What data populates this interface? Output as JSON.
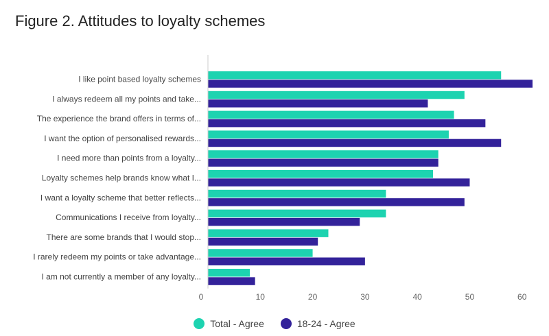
{
  "chart_data": {
    "type": "bar",
    "orientation": "horizontal",
    "title": "Figure 2. Attitudes to loyalty schemes",
    "categories": [
      "I like point based loyalty schemes",
      "I always redeem all my points and take...",
      "The experience the brand offers in terms of...",
      "I want the option of personalised rewards...",
      "I need more than points from a loyalty...",
      "Loyalty schemes help brands know what I...",
      "I want a loyalty scheme that better reflects...",
      "Communications I receive from loyalty...",
      "There are some brands that I would stop...",
      "I rarely redeem my points or take advantage...",
      "I am not currently a member of any loyalty..."
    ],
    "series": [
      {
        "name": "Total - Agree",
        "color": "#1dd3b0",
        "values": [
          56,
          49,
          47,
          46,
          44,
          43,
          34,
          34,
          23,
          20,
          8
        ]
      },
      {
        "name": "18-24 - Agree",
        "color": "#33229a",
        "values": [
          62,
          42,
          53,
          56,
          44,
          50,
          49,
          29,
          21,
          30,
          9
        ]
      }
    ],
    "xlim": [
      0,
      62
    ],
    "xticks": [
      0,
      10,
      20,
      30,
      40,
      50,
      60
    ],
    "grid": false,
    "legend": "bottom-center"
  }
}
